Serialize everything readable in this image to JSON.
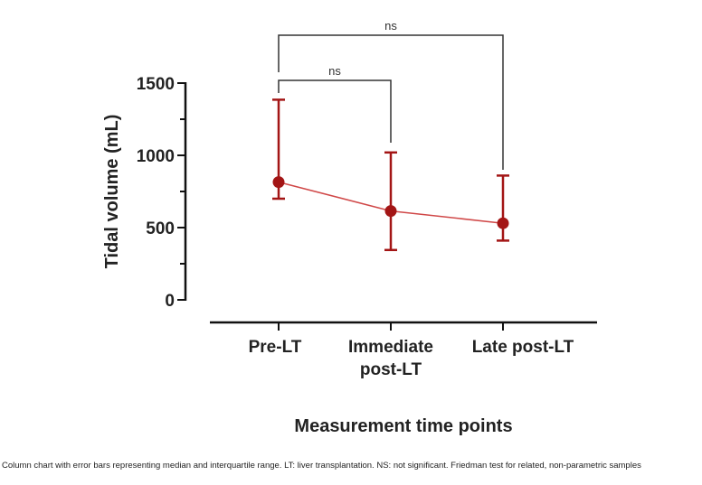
{
  "chart_data": {
    "type": "line",
    "title": "",
    "xlabel": "Measurement time points",
    "ylabel": "Tidal volume (mL)",
    "ylim": [
      0,
      1500
    ],
    "yticks": [
      "0",
      "500",
      "1000",
      "1500"
    ],
    "categories": [
      "Pre-LT",
      "Immediate post-LT",
      "Late post-LT"
    ],
    "category_lines": [
      [
        "Pre-LT"
      ],
      [
        "Immediate",
        "post-LT"
      ],
      [
        "Late post-LT"
      ]
    ],
    "series": [
      {
        "name": "Median",
        "values": [
          815,
          615,
          530
        ],
        "q1": [
          700,
          345,
          410
        ],
        "q3": [
          1385,
          1020,
          860
        ]
      }
    ],
    "annotations": [
      {
        "text": "ns",
        "from": 0,
        "to": 2
      },
      {
        "text": "ns",
        "from": 0,
        "to": 1
      }
    ],
    "colors": {
      "series": "#a31515",
      "line": "#d04848",
      "bracket": "#333333",
      "axis": "#111111"
    }
  },
  "caption": "Column chart with error bars representing median and interquartile range. LT: liver transplantation. NS: not significant. Friedman test for related, non-parametric samples"
}
